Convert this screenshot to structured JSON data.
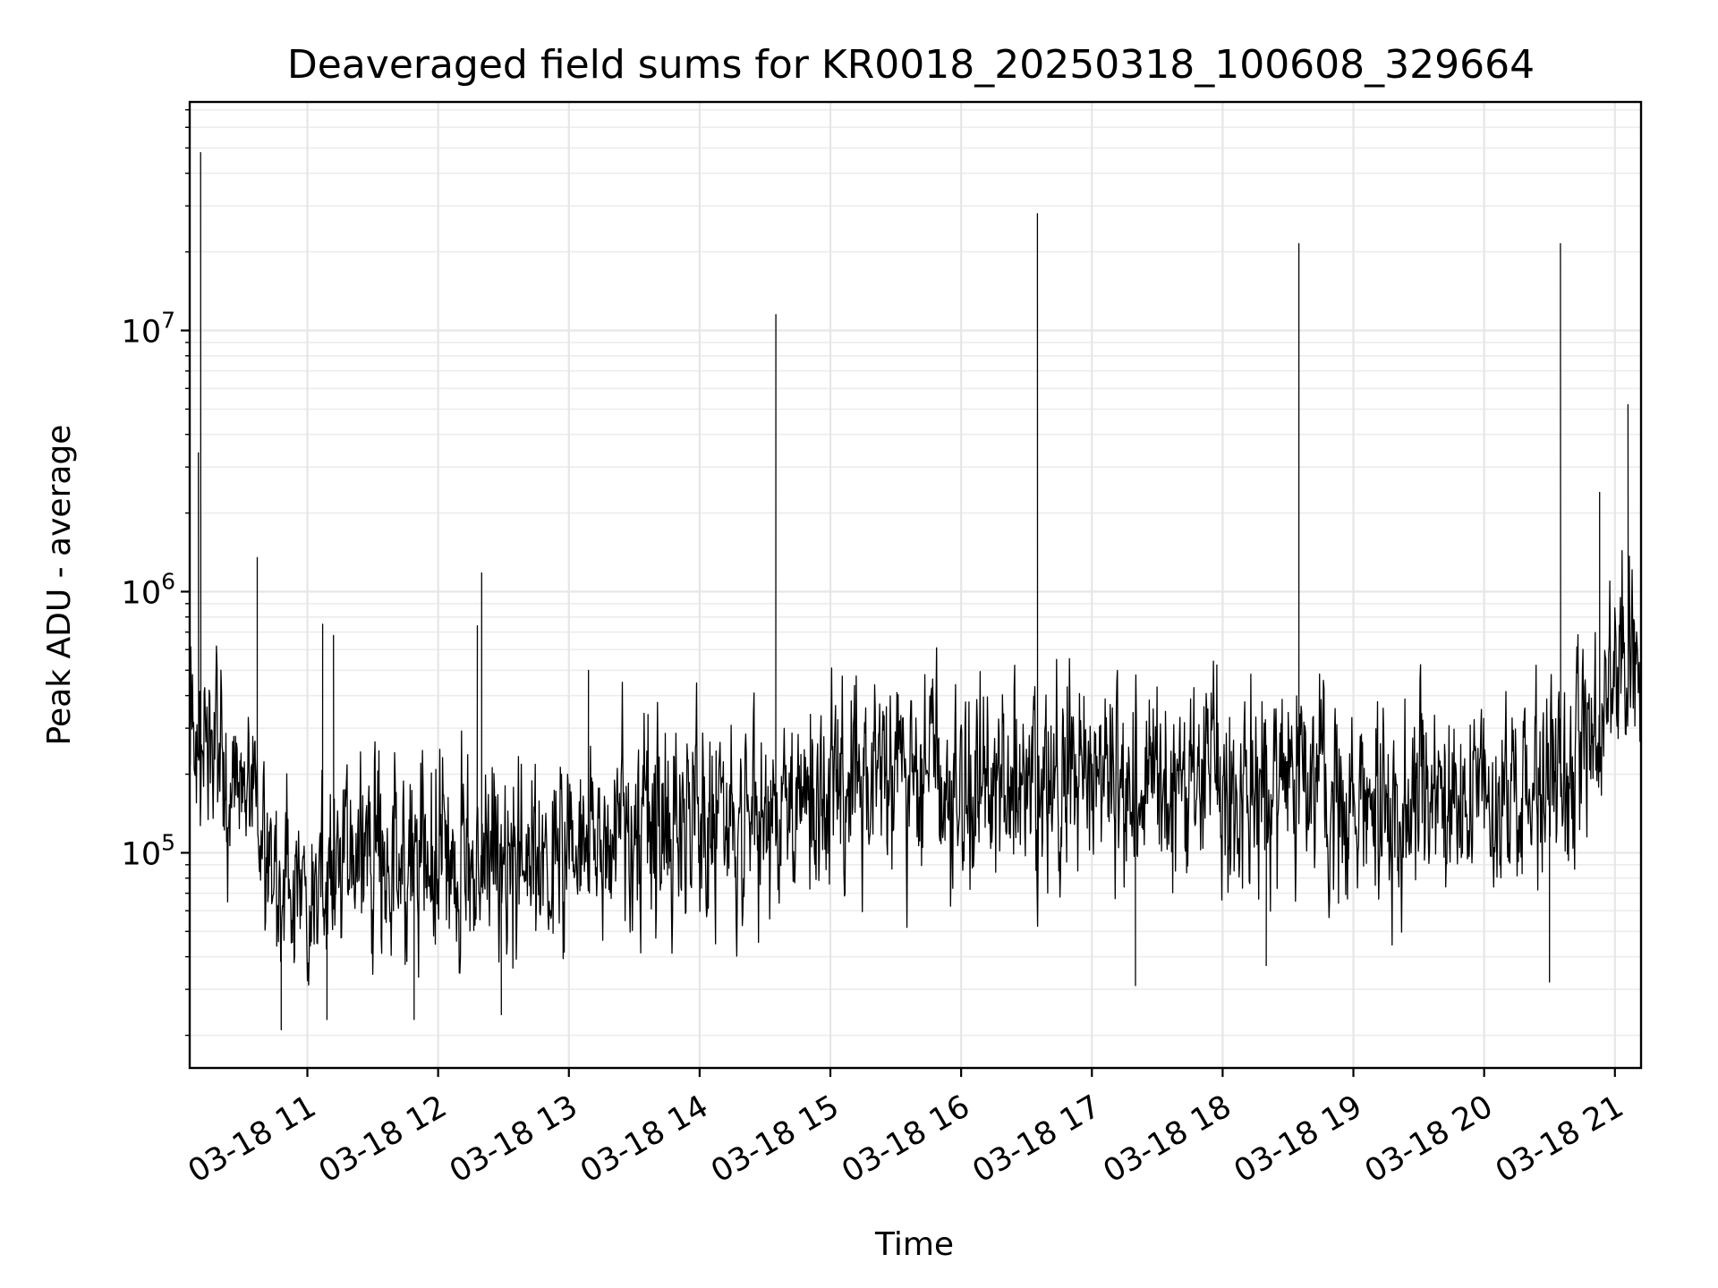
{
  "chart_data": {
    "type": "line",
    "title": "Deaveraged field sums for KR0018_20250318_100608_329664",
    "xlabel": "Time",
    "ylabel": "Peak ADU - average",
    "xscale": "time",
    "yscale": "log",
    "xlim": [
      "2025-03-18 10:06",
      "2025-03-18 21:12"
    ],
    "ylim": [
      15000,
      75000000
    ],
    "grid": true,
    "grid_minor": true,
    "x_ticks": [
      {
        "value": "2025-03-18 11:00",
        "label": "03-18 11"
      },
      {
        "value": "2025-03-18 12:00",
        "label": "03-18 12"
      },
      {
        "value": "2025-03-18 13:00",
        "label": "03-18 13"
      },
      {
        "value": "2025-03-18 14:00",
        "label": "03-18 14"
      },
      {
        "value": "2025-03-18 15:00",
        "label": "03-18 15"
      },
      {
        "value": "2025-03-18 16:00",
        "label": "03-18 16"
      },
      {
        "value": "2025-03-18 17:00",
        "label": "03-18 17"
      },
      {
        "value": "2025-03-18 18:00",
        "label": "03-18 18"
      },
      {
        "value": "2025-03-18 19:00",
        "label": "03-18 19"
      },
      {
        "value": "2025-03-18 20:00",
        "label": "03-18 20"
      },
      {
        "value": "2025-03-18 21:00",
        "label": "03-18 21"
      }
    ],
    "y_ticks": [
      {
        "value": 100000,
        "base": "10",
        "exp": "5"
      },
      {
        "value": 1000000,
        "base": "10",
        "exp": "6"
      },
      {
        "value": 10000000,
        "base": "10",
        "exp": "7"
      }
    ],
    "series": [
      {
        "color": "#000000",
        "baseline": [
          {
            "x": "2025-03-18 10:06",
            "y": 400000
          },
          {
            "x": "2025-03-18 10:15",
            "y": 250000
          },
          {
            "x": "2025-03-18 10:30",
            "y": 150000
          },
          {
            "x": "2025-03-18 10:45",
            "y": 80000
          },
          {
            "x": "2025-03-18 11:00",
            "y": 65000
          },
          {
            "x": "2025-03-18 11:30",
            "y": 100000
          },
          {
            "x": "2025-03-18 12:00",
            "y": 90000
          },
          {
            "x": "2025-03-18 12:30",
            "y": 90000
          },
          {
            "x": "2025-03-18 13:00",
            "y": 110000
          },
          {
            "x": "2025-03-18 13:30",
            "y": 120000
          },
          {
            "x": "2025-03-18 14:00",
            "y": 130000
          },
          {
            "x": "2025-03-18 14:30",
            "y": 140000
          },
          {
            "x": "2025-03-18 15:00",
            "y": 170000
          },
          {
            "x": "2025-03-18 15:30",
            "y": 190000
          },
          {
            "x": "2025-03-18 16:00",
            "y": 190000
          },
          {
            "x": "2025-03-18 17:00",
            "y": 195000
          },
          {
            "x": "2025-03-18 18:00",
            "y": 180000
          },
          {
            "x": "2025-03-18 19:00",
            "y": 165000
          },
          {
            "x": "2025-03-18 20:00",
            "y": 160000
          },
          {
            "x": "2025-03-18 20:40",
            "y": 180000
          },
          {
            "x": "2025-03-18 20:50",
            "y": 250000
          },
          {
            "x": "2025-03-18 21:00",
            "y": 500000
          },
          {
            "x": "2025-03-18 21:12",
            "y": 700000
          }
        ],
        "spikes": [
          {
            "x": "2025-03-18 10:11",
            "y": 48000000
          },
          {
            "x": "2025-03-18 10:10",
            "y": 3400000
          },
          {
            "x": "2025-03-18 10:37",
            "y": 1350000
          },
          {
            "x": "2025-03-18 11:07",
            "y": 750000
          },
          {
            "x": "2025-03-18 11:12",
            "y": 680000
          },
          {
            "x": "2025-03-18 12:18",
            "y": 740000
          },
          {
            "x": "2025-03-18 12:20",
            "y": 1180000
          },
          {
            "x": "2025-03-18 13:09",
            "y": 500000
          },
          {
            "x": "2025-03-18 14:35",
            "y": 11500000
          },
          {
            "x": "2025-03-18 16:35",
            "y": 28000000
          },
          {
            "x": "2025-03-18 18:35",
            "y": 21500000
          },
          {
            "x": "2025-03-18 20:35",
            "y": 21500000
          },
          {
            "x": "2025-03-18 20:53",
            "y": 2400000
          },
          {
            "x": "2025-03-18 21:06",
            "y": 5200000
          },
          {
            "x": "2025-03-18 21:12",
            "y": 1250000
          }
        ],
        "dips": [
          {
            "x": "2025-03-18 10:48",
            "y": 21000
          },
          {
            "x": "2025-03-18 11:09",
            "y": 23000
          },
          {
            "x": "2025-03-18 11:49",
            "y": 23000
          },
          {
            "x": "2025-03-18 12:29",
            "y": 24000
          },
          {
            "x": "2025-03-18 17:20",
            "y": 31000
          },
          {
            "x": "2025-03-18 18:20",
            "y": 37000
          },
          {
            "x": "2025-03-18 20:30",
            "y": 32000
          }
        ]
      }
    ]
  }
}
